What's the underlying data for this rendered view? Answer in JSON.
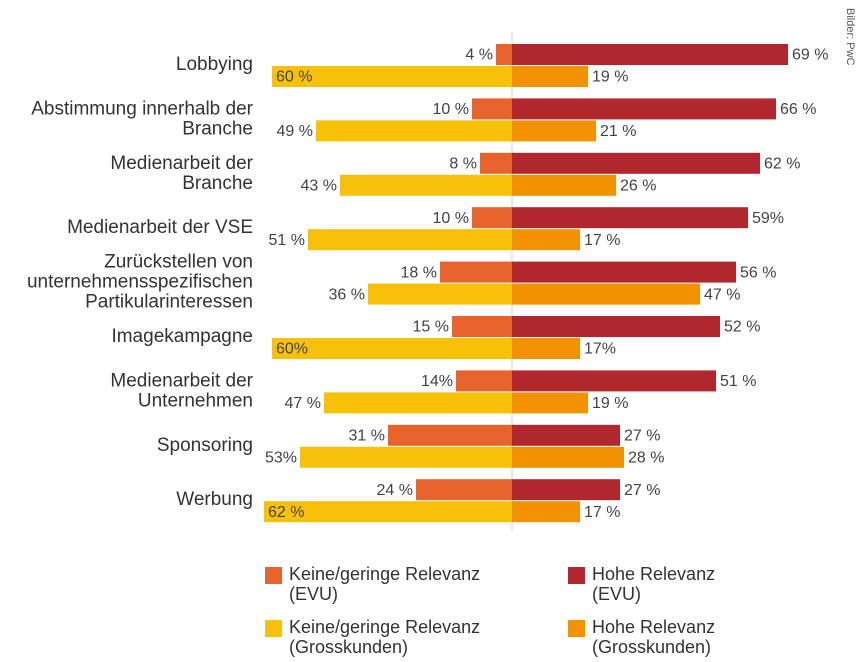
{
  "chart_data": {
    "type": "diverging-bar",
    "credit": "Bilder: PwC",
    "categories": [
      "Lobbying",
      "Abstimmung innerhalb der\nBranche",
      "Medienarbeit der\nBranche",
      "Medienarbeit der VSE",
      "Zurückstellen von\nunternehmensspezifischen\nPartikularinteressen",
      "Imagekampagne",
      "Medienarbeit der\nUnternehmen",
      "Sponsoring",
      "Werbung"
    ],
    "series": [
      {
        "name": "Keine/geringe Relevanz\n(EVU)",
        "color": "#e8632b",
        "side": "left",
        "row": "upper",
        "values": [
          4,
          10,
          8,
          10,
          18,
          15,
          14,
          31,
          24
        ],
        "value_labels": [
          "4 %",
          "10 %",
          "8 %",
          "10 %",
          "18 %",
          "15 %",
          "14%",
          "31 %",
          "24 %"
        ]
      },
      {
        "name": "Keine/geringe Relevanz\n(Grosskunden)",
        "color": "#f7c10a",
        "side": "left",
        "row": "lower",
        "values": [
          60,
          49,
          43,
          51,
          36,
          60,
          47,
          53,
          62
        ],
        "value_labels": [
          "60 %",
          "49 %",
          "43 %",
          "51 %",
          "36 %",
          "60%",
          "47 %",
          "53%",
          "62 %"
        ]
      },
      {
        "name": "Hohe Relevanz\n(EVU)",
        "color": "#b0282d",
        "side": "right",
        "row": "upper",
        "values": [
          69,
          66,
          62,
          59,
          56,
          52,
          51,
          27,
          27
        ],
        "value_labels": [
          "69 %",
          "66 %",
          "62 %",
          "59%",
          "56 %",
          "52 %",
          "51 %",
          "27 %",
          "27 %"
        ]
      },
      {
        "name": "Hohe Relevanz\n(Grosskunden)",
        "color": "#f39200",
        "side": "right",
        "row": "lower",
        "values": [
          19,
          21,
          26,
          17,
          47,
          17,
          19,
          28,
          17
        ],
        "value_labels": [
          "19 %",
          "21 %",
          "26 %",
          "17 %",
          "47 %",
          "17%",
          "19 %",
          "28 %",
          "17 %"
        ]
      }
    ]
  }
}
